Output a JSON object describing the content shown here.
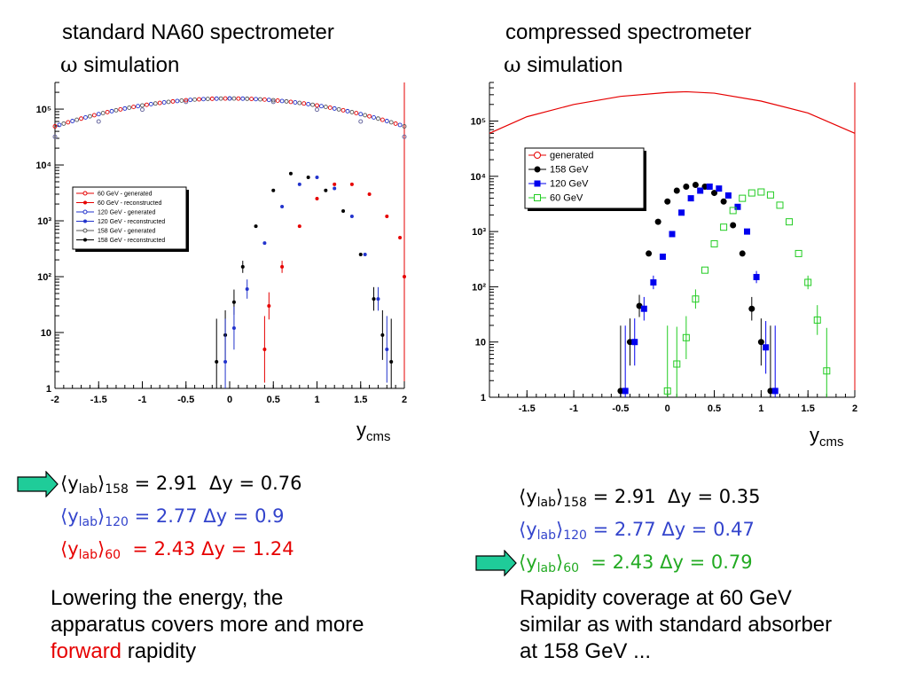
{
  "left_panel": {
    "title1": "standard NA60 spectrometer",
    "title2": " simulation",
    "omega": "ω",
    "xlabel_main": "y",
    "xlabel_sub": "cms",
    "stats": [
      {
        "color": "#000000",
        "arrow": true,
        "ylab": "y",
        "sub": "lab",
        "energy": "158",
        "value": " = 2.91  ",
        "delta": "Δy = 0.76"
      },
      {
        "color": "#3344cc",
        "arrow": false,
        "ylab": "y",
        "sub": "lab",
        "energy": "120",
        "value": " = 2.77 ",
        "delta": "Δy = 0.9"
      },
      {
        "color": "#e60000",
        "arrow": false,
        "ylab": "y",
        "sub": "lab",
        "energy": "60",
        "value": "  = 2.43 ",
        "delta": "Δy = 1.24"
      }
    ],
    "para_line1": "Lowering the energy, the",
    "para_line2": "apparatus covers more and more",
    "para_highlight": "forward",
    "para_rest": " rapidity"
  },
  "right_panel": {
    "title1": "compressed spectrometer",
    "title2": " simulation",
    "omega": "ω",
    "xlabel_main": "y",
    "xlabel_sub": "cms",
    "stats": [
      {
        "color": "#000000",
        "arrow": false,
        "ylab": "y",
        "sub": "lab",
        "energy": "158",
        "value": " = 2.91  ",
        "delta": "Δy = 0.35"
      },
      {
        "color": "#3344cc",
        "arrow": false,
        "ylab": "y",
        "sub": "lab",
        "energy": "120",
        "value": " = 2.77 ",
        "delta": "Δy = 0.47"
      },
      {
        "color": "#22aa22",
        "arrow": true,
        "ylab": "y",
        "sub": "lab",
        "energy": "60",
        "value": "  = 2.43 ",
        "delta": "Δy = 0.79"
      }
    ],
    "para_line1": "Rapidity coverage at 60 GeV",
    "para_line2": "similar as with standard absorber",
    "para_line3": "at 158 GeV ..."
  },
  "colors": {
    "arrow_fill": "#1fcc99",
    "highlight": "#e60000"
  },
  "chart_data": [
    {
      "type": "scatter",
      "xlim": [
        -2,
        2
      ],
      "ylim": [
        1,
        300000
      ],
      "yscale": "log",
      "xticks": [
        "-2",
        "-1.5",
        "-1",
        "-0.5",
        "0",
        "0.5",
        "1",
        "1.5",
        "2"
      ],
      "yticks": [
        "1",
        "10",
        "10²",
        "10³",
        "10⁴",
        "10⁵"
      ],
      "legend_position": "center-left",
      "legend": [
        {
          "label": "60 GeV - generated",
          "color": "#e60000",
          "marker": "open-circle"
        },
        {
          "label": "60 GeV - reconstructed",
          "color": "#e60000",
          "marker": "dot"
        },
        {
          "label": "120 GeV - generated",
          "color": "#2233cc",
          "marker": "open-circle"
        },
        {
          "label": "120 GeV - reconstructed",
          "color": "#2233cc",
          "marker": "dot"
        },
        {
          "label": "158 GeV - generated",
          "color": "#555555",
          "marker": "open-circle"
        },
        {
          "label": "158 GeV - reconstructed",
          "color": "#000000",
          "marker": "dot"
        }
      ],
      "series": [
        {
          "name": "generated",
          "color": "#6a6aa0",
          "marker": "open-circle",
          "generated": true,
          "x": [
            -2,
            -1.5,
            -1,
            -0.5,
            0,
            0.5,
            1,
            1.5,
            2
          ],
          "y": [
            32000,
            60000,
            98000,
            135000,
            155000,
            135000,
            98000,
            60000,
            32000
          ]
        },
        {
          "name": "158 GeV - reconstructed",
          "color": "#000000",
          "marker": "dot",
          "generated": false,
          "x": [
            -0.15,
            -0.05,
            0.05,
            0.15,
            0.3,
            0.5,
            0.7,
            0.9,
            1.1,
            1.3,
            1.5,
            1.65,
            1.75,
            1.85
          ],
          "y": [
            3,
            9,
            35,
            150,
            800,
            3500,
            7000,
            6000,
            3500,
            1500,
            250,
            40,
            9,
            3
          ]
        },
        {
          "name": "120 GeV - reconstructed",
          "color": "#2233cc",
          "marker": "dot",
          "generated": false,
          "x": [
            -0.05,
            0.05,
            0.2,
            0.4,
            0.6,
            0.8,
            1.0,
            1.2,
            1.4,
            1.55,
            1.7,
            1.8
          ],
          "y": [
            3,
            12,
            60,
            400,
            1800,
            4500,
            6000,
            3800,
            1200,
            250,
            40,
            5
          ]
        },
        {
          "name": "60 GeV - reconstructed",
          "color": "#e60000",
          "marker": "dot",
          "generated": false,
          "x": [
            0.4,
            0.45,
            0.6,
            0.8,
            1.0,
            1.2,
            1.4,
            1.6,
            1.8,
            1.95,
            2.0
          ],
          "y": [
            5,
            30,
            150,
            800,
            2500,
            4500,
            4500,
            3000,
            1200,
            500,
            100
          ]
        }
      ]
    },
    {
      "type": "scatter",
      "xlim": [
        -1.9,
        2
      ],
      "ylim": [
        1,
        500000
      ],
      "yscale": "log",
      "xticks": [
        "-1.5",
        "-1",
        "-0.5",
        "0",
        "0.5",
        "1",
        "1.5",
        "2"
      ],
      "yticks": [
        "1",
        "10",
        "10²",
        "10³",
        "10⁴",
        "10⁵"
      ],
      "legend_position": "center-left",
      "legend": [
        {
          "label": "generated",
          "color": "#e60000",
          "marker": "open-circle"
        },
        {
          "label": "158 GeV",
          "color": "#000000",
          "marker": "dot"
        },
        {
          "label": "120 GeV",
          "color": "#0000ee",
          "marker": "square"
        },
        {
          "label": "60 GeV",
          "color": "#22cc22",
          "marker": "open-square"
        }
      ],
      "series": [
        {
          "name": "generated",
          "color": "#e60000",
          "marker": "line",
          "x": [
            -1.9,
            -1.5,
            -1,
            -0.5,
            0,
            0.2,
            0.5,
            1,
            1.5,
            2
          ],
          "y": [
            60000,
            120000,
            200000,
            280000,
            330000,
            340000,
            320000,
            230000,
            140000,
            60000
          ]
        },
        {
          "name": "158 GeV",
          "color": "#000000",
          "marker": "dot",
          "x": [
            -0.5,
            -0.4,
            -0.3,
            -0.2,
            -0.1,
            0,
            0.1,
            0.2,
            0.3,
            0.4,
            0.5,
            0.6,
            0.7,
            0.8,
            0.9,
            1.0,
            1.1
          ],
          "y": [
            1.3,
            10,
            45,
            400,
            1500,
            3500,
            5500,
            6500,
            7000,
            6500,
            5000,
            3500,
            1300,
            400,
            40,
            10,
            1.3
          ]
        },
        {
          "name": "120 GeV",
          "color": "#0000ee",
          "marker": "square",
          "x": [
            -0.45,
            -0.35,
            -0.25,
            -0.15,
            -0.05,
            0.05,
            0.15,
            0.25,
            0.35,
            0.45,
            0.55,
            0.65,
            0.75,
            0.85,
            0.95,
            1.05,
            1.15
          ],
          "y": [
            1.3,
            10,
            40,
            120,
            350,
            900,
            2200,
            4000,
            5500,
            6500,
            6000,
            4500,
            2800,
            1000,
            150,
            8,
            1.3
          ]
        },
        {
          "name": "60 GeV",
          "color": "#22cc22",
          "marker": "open-square",
          "x": [
            0,
            0.1,
            0.2,
            0.3,
            0.4,
            0.5,
            0.6,
            0.7,
            0.8,
            0.9,
            1.0,
            1.1,
            1.2,
            1.3,
            1.4,
            1.5,
            1.6,
            1.7
          ],
          "y": [
            1.3,
            4,
            12,
            60,
            200,
            600,
            1200,
            2400,
            4000,
            5000,
            5200,
            4600,
            3000,
            1500,
            400,
            120,
            25,
            3
          ]
        }
      ]
    }
  ]
}
